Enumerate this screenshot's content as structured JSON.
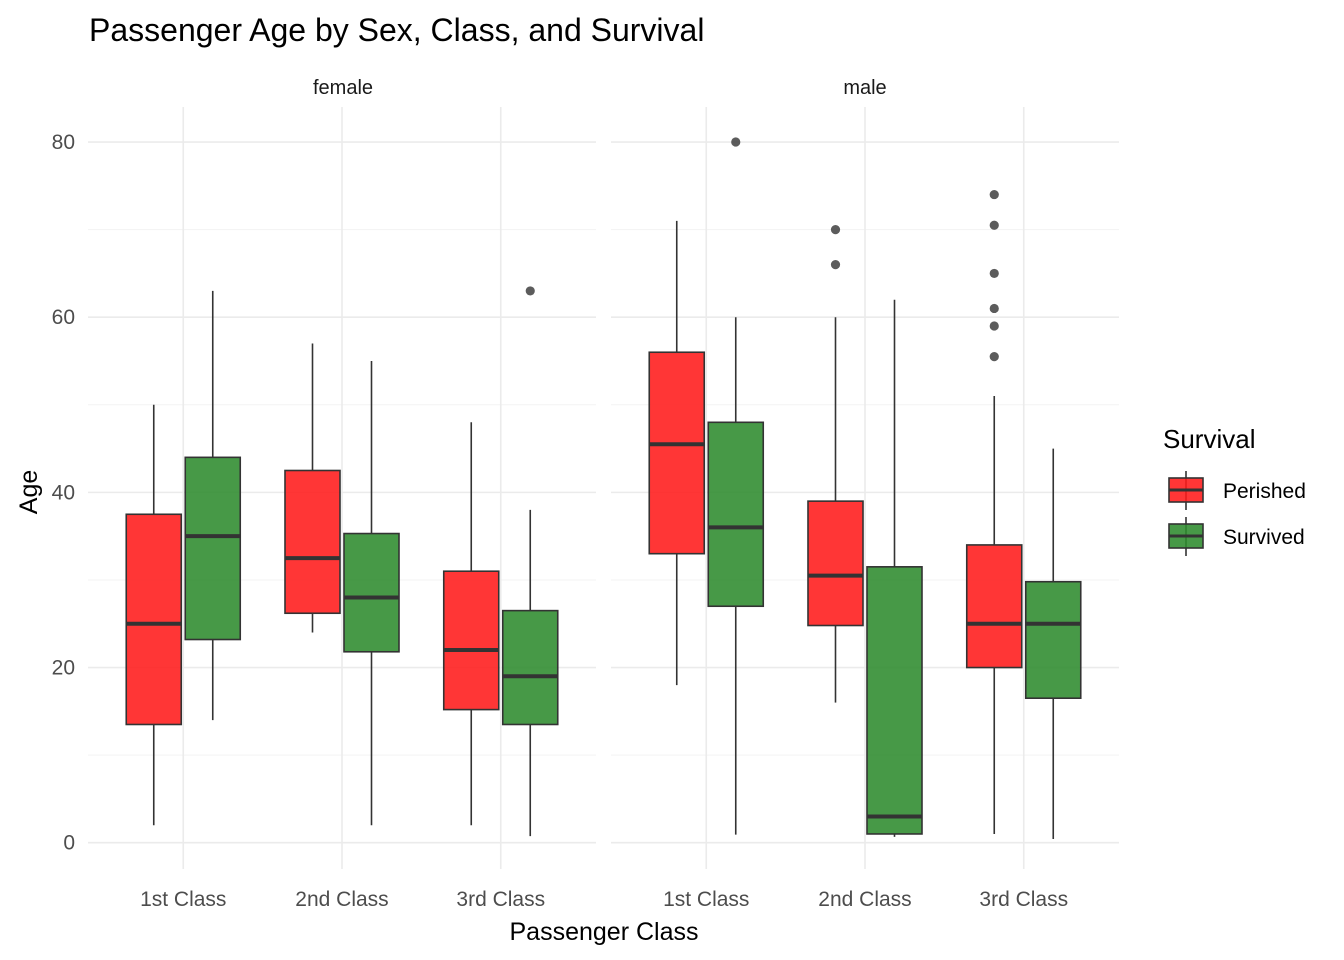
{
  "chart_data": {
    "type": "boxplot",
    "title": "Passenger Age by Sex, Class, and Survival",
    "xlabel": "Passenger Class",
    "ylabel": "Age",
    "ylim": [
      -3,
      84
    ],
    "y_ticks": [
      0,
      20,
      40,
      60,
      80
    ],
    "grid": true,
    "categories": [
      "1st Class",
      "2nd Class",
      "3rd Class"
    ],
    "facets": [
      "female",
      "male"
    ],
    "legend": {
      "title": "Survival",
      "position": "right",
      "items": [
        {
          "label": "Perished",
          "color": "#ff1a1a"
        },
        {
          "label": "Survived",
          "color": "#2e8b2e"
        }
      ]
    },
    "colors": {
      "Perished": "#ff1a1a",
      "Survived": "#2e8b2e"
    },
    "boxes": [
      {
        "facet": "female",
        "class": "1st Class",
        "survival": "Perished",
        "min": 2,
        "q1": 13.5,
        "median": 25,
        "q3": 37.5,
        "max": 50,
        "outliers": []
      },
      {
        "facet": "female",
        "class": "1st Class",
        "survival": "Survived",
        "min": 14,
        "q1": 23.2,
        "median": 35,
        "q3": 44,
        "max": 63,
        "outliers": []
      },
      {
        "facet": "female",
        "class": "2nd Class",
        "survival": "Perished",
        "min": 24,
        "q1": 26.2,
        "median": 32.5,
        "q3": 42.5,
        "max": 57,
        "outliers": []
      },
      {
        "facet": "female",
        "class": "2nd Class",
        "survival": "Survived",
        "min": 2,
        "q1": 21.8,
        "median": 28,
        "q3": 35.3,
        "max": 55,
        "outliers": []
      },
      {
        "facet": "female",
        "class": "3rd Class",
        "survival": "Perished",
        "min": 2,
        "q1": 15.2,
        "median": 22,
        "q3": 31,
        "max": 48,
        "outliers": []
      },
      {
        "facet": "female",
        "class": "3rd Class",
        "survival": "Survived",
        "min": 0.75,
        "q1": 13.5,
        "median": 19,
        "q3": 26.5,
        "max": 38,
        "outliers": [
          63
        ]
      },
      {
        "facet": "male",
        "class": "1st Class",
        "survival": "Perished",
        "min": 18,
        "q1": 33,
        "median": 45.5,
        "q3": 56,
        "max": 71,
        "outliers": []
      },
      {
        "facet": "male",
        "class": "1st Class",
        "survival": "Survived",
        "min": 0.92,
        "q1": 27,
        "median": 36,
        "q3": 48,
        "max": 60,
        "outliers": [
          80
        ]
      },
      {
        "facet": "male",
        "class": "2nd Class",
        "survival": "Perished",
        "min": 16,
        "q1": 24.8,
        "median": 30.5,
        "q3": 39,
        "max": 60,
        "outliers": [
          66,
          70
        ]
      },
      {
        "facet": "male",
        "class": "2nd Class",
        "survival": "Survived",
        "min": 0.67,
        "q1": 1,
        "median": 3,
        "q3": 31.5,
        "max": 62,
        "outliers": []
      },
      {
        "facet": "male",
        "class": "3rd Class",
        "survival": "Perished",
        "min": 1,
        "q1": 20,
        "median": 25,
        "q3": 34,
        "max": 51,
        "outliers": [
          55.5,
          59,
          61,
          65,
          70.5,
          74
        ]
      },
      {
        "facet": "male",
        "class": "3rd Class",
        "survival": "Survived",
        "min": 0.42,
        "q1": 16.5,
        "median": 25,
        "q3": 29.8,
        "max": 45,
        "outliers": []
      }
    ]
  }
}
